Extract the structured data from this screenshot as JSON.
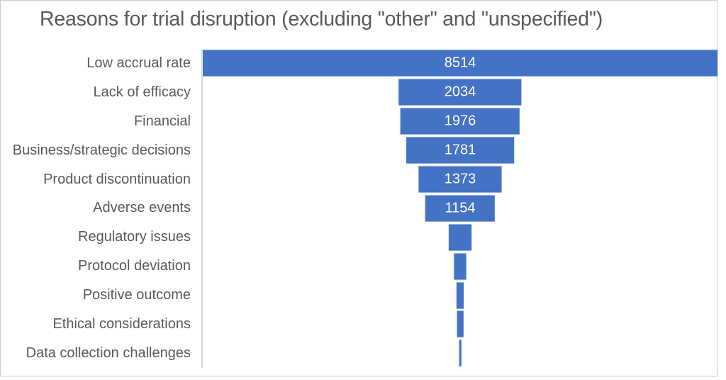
{
  "chart": {
    "title": "Reasons for trial disruption (excluding \"other\" and \"unspecified\")"
  },
  "chart_data": {
    "type": "bar",
    "variant": "horizontal-centered-funnel",
    "title": "Reasons for trial disruption (excluding \"other\" and \"unspecified\")",
    "categories": [
      "Low accrual rate",
      "Lack of efficacy",
      "Financial",
      "Business/strategic decisions",
      "Product discontinuation",
      "Adverse events",
      "Regulatory issues",
      "Protocol deviation",
      "Positive outcome",
      "Ethical considerations",
      "Data collection challenges"
    ],
    "values": [
      8514,
      2034,
      1976,
      1781,
      1373,
      1154,
      375,
      200,
      118,
      100,
      30
    ],
    "data_labels": [
      "8514",
      "2034",
      "1976",
      "1781",
      "1373",
      "1154",
      "",
      "",
      "",
      "",
      ""
    ],
    "values_estimated_for_unlabeled_bars": true,
    "xlim": [
      0,
      8514
    ],
    "bar_color": "#4472C4",
    "value_label_color": "#FFFFFF",
    "axis_line_color": "#D9D9D9",
    "text_color": "#595959",
    "legend": "none",
    "grid": "off"
  }
}
